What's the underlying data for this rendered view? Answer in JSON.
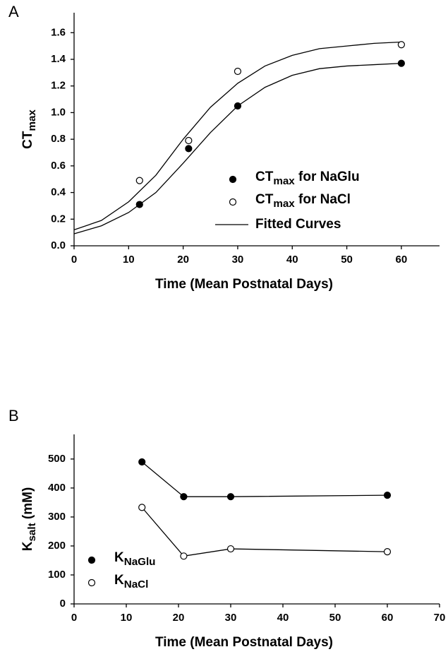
{
  "chart_data": [
    {
      "type": "scatter",
      "panel_label": "A",
      "xlabel": "Time (Mean Postnatal Days)",
      "ylabel": {
        "text": "CT",
        "sub": "max"
      },
      "xlim": [
        0,
        67
      ],
      "xticks": [
        0,
        10,
        20,
        30,
        40,
        50,
        60
      ],
      "ylim": [
        0,
        1.75
      ],
      "yticks": [
        {
          "value": 0,
          "label": "0.0"
        },
        0.2,
        0.4,
        0.6,
        0.8,
        {
          "value": 1,
          "label": "1.0"
        },
        1.2,
        1.4,
        1.6
      ],
      "legend": "lower right",
      "series": [
        {
          "name": "CT",
          "name_sub": "max",
          "name_tail": " for NaGlu",
          "color": "#000000",
          "filled": true,
          "x": [
            12,
            21,
            30,
            60
          ],
          "values": [
            0.31,
            0.73,
            1.05,
            1.37
          ]
        },
        {
          "name": "CT",
          "name_sub": "max",
          "name_tail": " for NaCl",
          "color": "#000000",
          "filled": false,
          "x": [
            12,
            21,
            30,
            60
          ],
          "values": [
            0.49,
            0.79,
            1.31,
            1.51
          ]
        }
      ],
      "fit_label": "Fitted Curves",
      "fits": [
        {
          "x": [
            0,
            5,
            10,
            15,
            20,
            25,
            30,
            35,
            40,
            45,
            50,
            55,
            60
          ],
          "values": [
            0.09,
            0.15,
            0.25,
            0.4,
            0.62,
            0.85,
            1.05,
            1.19,
            1.28,
            1.33,
            1.35,
            1.36,
            1.37
          ]
        },
        {
          "x": [
            0,
            5,
            10,
            15,
            20,
            25,
            30,
            35,
            40,
            45,
            50,
            55,
            60
          ],
          "values": [
            0.12,
            0.19,
            0.33,
            0.53,
            0.8,
            1.04,
            1.22,
            1.35,
            1.43,
            1.48,
            1.5,
            1.52,
            1.53
          ]
        }
      ]
    },
    {
      "type": "line",
      "panel_label": "B",
      "xlabel": "Time (Mean Postnatal Days)",
      "ylabel": {
        "text": "K",
        "sub": "salt",
        "tail": " (mM)"
      },
      "xlim": [
        0,
        70
      ],
      "xticks": [
        0,
        10,
        20,
        30,
        40,
        50,
        60,
        70
      ],
      "ylim": [
        0,
        585
      ],
      "yticks": [
        0,
        100,
        200,
        300,
        400,
        500
      ],
      "legend": "lower left",
      "series": [
        {
          "name": "K",
          "name_sub": "NaGlu",
          "color": "#000000",
          "filled": true,
          "x": [
            13,
            21,
            30,
            60
          ],
          "values": [
            490,
            370,
            370,
            375
          ]
        },
        {
          "name": "K",
          "name_sub": "NaCl",
          "color": "#000000",
          "filled": false,
          "x": [
            13,
            21,
            30,
            60
          ],
          "values": [
            333,
            165,
            190,
            180
          ]
        }
      ]
    }
  ]
}
